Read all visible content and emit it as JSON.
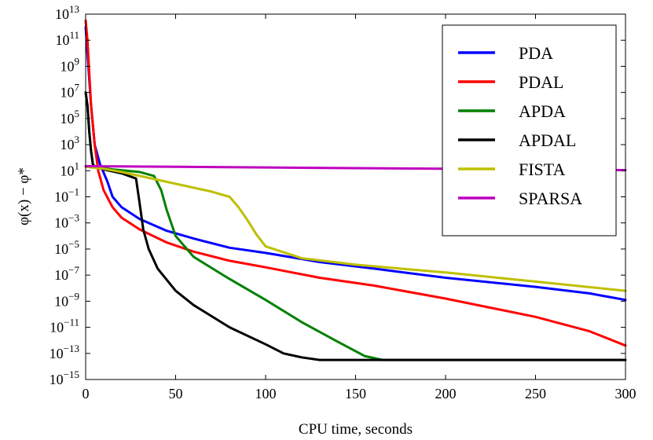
{
  "chart_data": {
    "type": "line",
    "xlabel": "CPU time, seconds",
    "ylabel": "φ(x) − φ*",
    "xlim": [
      0,
      300
    ],
    "ylim_log10": [
      -15,
      13
    ],
    "yscale": "log",
    "grid": false,
    "legend_position": "top-right",
    "x_ticks": [
      "0",
      "50",
      "100",
      "150",
      "200",
      "250",
      "300"
    ],
    "y_ticks": [
      {
        "base": "10",
        "exp": "13"
      },
      {
        "base": "10",
        "exp": "11"
      },
      {
        "base": "10",
        "exp": "9"
      },
      {
        "base": "10",
        "exp": "7"
      },
      {
        "base": "10",
        "exp": "5"
      },
      {
        "base": "10",
        "exp": "3"
      },
      {
        "base": "10",
        "exp": "1"
      },
      {
        "base": "10",
        "exp": "−1"
      },
      {
        "base": "10",
        "exp": "−3"
      },
      {
        "base": "10",
        "exp": "−5"
      },
      {
        "base": "10",
        "exp": "−7"
      },
      {
        "base": "10",
        "exp": "−9"
      },
      {
        "base": "10",
        "exp": "−11"
      },
      {
        "base": "10",
        "exp": "−13"
      },
      {
        "base": "10",
        "exp": "−15"
      }
    ],
    "series": [
      {
        "name": "PDA",
        "color": "#0000ff",
        "x": [
          0,
          1,
          3,
          5,
          8,
          12,
          15,
          20,
          30,
          45,
          60,
          80,
          100,
          130,
          160,
          200,
          250,
          280,
          300
        ],
        "y_log10": [
          12,
          10,
          6,
          3,
          1.5,
          0.2,
          -1,
          -1.8,
          -2.7,
          -3.6,
          -4.2,
          -4.9,
          -5.3,
          -6.0,
          -6.5,
          -7.2,
          -7.9,
          -8.4,
          -8.9
        ]
      },
      {
        "name": "PDAL",
        "color": "#ff0000",
        "x": [
          0,
          1,
          3,
          5,
          7,
          10,
          15,
          20,
          30,
          45,
          60,
          80,
          100,
          130,
          160,
          200,
          250,
          280,
          300
        ],
        "y_log10": [
          12.5,
          11,
          6,
          3,
          1,
          -0.5,
          -1.8,
          -2.6,
          -3.5,
          -4.5,
          -5.2,
          -5.9,
          -6.4,
          -7.2,
          -7.8,
          -8.8,
          -10.2,
          -11.3,
          -12.4
        ]
      },
      {
        "name": "APDA",
        "color": "#008000",
        "x": [
          0,
          1,
          2,
          3,
          4,
          5,
          15,
          30,
          38,
          42,
          45,
          50,
          60,
          80,
          100,
          120,
          140,
          155,
          165,
          200,
          250,
          300
        ],
        "y_log10": [
          7,
          6,
          4,
          2.5,
          1.5,
          1.3,
          1.1,
          0.9,
          0.6,
          -0.5,
          -2,
          -4,
          -5.6,
          -7.3,
          -8.9,
          -10.6,
          -12.1,
          -13.2,
          -13.5,
          -13.5,
          -13.5,
          -13.5
        ]
      },
      {
        "name": "APDAL",
        "color": "#000000",
        "x": [
          0,
          1,
          2,
          3,
          4,
          5,
          10,
          20,
          28,
          30,
          32,
          35,
          40,
          50,
          60,
          80,
          100,
          110,
          120,
          130,
          150,
          200,
          250,
          300
        ],
        "y_log10": [
          7,
          6,
          4,
          2.5,
          1.5,
          1.3,
          1.1,
          0.8,
          0.4,
          -1.5,
          -3.5,
          -5,
          -6.5,
          -8.2,
          -9.3,
          -11,
          -12.3,
          -13,
          -13.3,
          -13.5,
          -13.5,
          -13.5,
          -13.5,
          -13.5
        ]
      },
      {
        "name": "FISTA",
        "color": "#bfbf00",
        "x": [
          0,
          10,
          20,
          30,
          40,
          50,
          60,
          70,
          80,
          85,
          90,
          95,
          100,
          120,
          150,
          200,
          250,
          300
        ],
        "y_log10": [
          1.3,
          1.15,
          0.9,
          0.6,
          0.3,
          0,
          -0.3,
          -0.6,
          -1,
          -1.8,
          -2.8,
          -3.9,
          -4.8,
          -5.7,
          -6.2,
          -6.8,
          -7.5,
          -8.2
        ]
      },
      {
        "name": "SPARSA",
        "color": "#bf00bf",
        "x": [
          0,
          50,
          100,
          150,
          200,
          250,
          300
        ],
        "y_log10": [
          1.35,
          1.3,
          1.25,
          1.2,
          1.15,
          1.1,
          1.05
        ]
      }
    ]
  }
}
